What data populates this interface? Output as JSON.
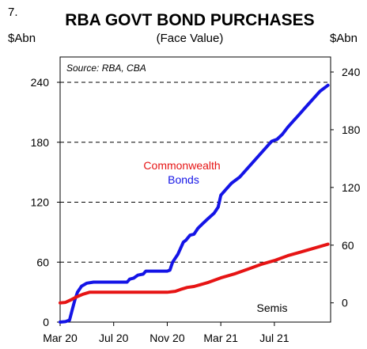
{
  "figure_number": "7.",
  "chart_data": {
    "type": "line",
    "title": "RBA GOVT BOND PURCHASES",
    "subtitle": "(Face Value)",
    "ylabel_left": "$Abn",
    "ylabel_right": "$Abn",
    "source": "Source: RBA, CBA",
    "x_tick_labels": [
      "Mar 20",
      "Jul 20",
      "Nov 20",
      "Mar 21",
      "Jul 21"
    ],
    "x_ticks_month_index": [
      0,
      4,
      8,
      12,
      16
    ],
    "xlim_month_index": [
      0,
      20.2
    ],
    "y_left": {
      "ticks": [
        0,
        60,
        120,
        180,
        240
      ],
      "tick_labels": [
        "0",
        "60",
        "120",
        "180",
        "240"
      ],
      "ylim": [
        0,
        240
      ]
    },
    "y_right": {
      "ticks": [
        0,
        60,
        120,
        180,
        240
      ],
      "tick_labels": [
        "0",
        "60",
        "120",
        "180",
        "240"
      ],
      "ylim": [
        -20,
        240
      ]
    },
    "grid": "horizontal-dashed",
    "series": [
      {
        "name": "Commonwealth Bonds",
        "axis": "left",
        "color": "#1414e6",
        "points": [
          [
            0,
            0
          ],
          [
            0.4,
            0.5
          ],
          [
            0.7,
            2
          ],
          [
            0.9,
            12
          ],
          [
            1.1,
            22
          ],
          [
            1.3,
            30
          ],
          [
            1.6,
            36
          ],
          [
            2.0,
            39
          ],
          [
            2.5,
            40
          ],
          [
            3.0,
            40
          ],
          [
            4.0,
            40
          ],
          [
            4.5,
            40
          ],
          [
            5.0,
            40
          ],
          [
            5.2,
            43
          ],
          [
            5.5,
            44
          ],
          [
            5.8,
            47
          ],
          [
            6.2,
            48
          ],
          [
            6.4,
            51
          ],
          [
            7.0,
            51
          ],
          [
            7.5,
            51
          ],
          [
            8.0,
            51
          ],
          [
            8.2,
            52
          ],
          [
            8.4,
            60
          ],
          [
            8.8,
            68
          ],
          [
            9.2,
            80
          ],
          [
            9.4,
            82
          ],
          [
            9.7,
            87
          ],
          [
            10.0,
            88
          ],
          [
            10.3,
            94
          ],
          [
            10.6,
            98
          ],
          [
            11.0,
            103
          ],
          [
            11.5,
            109
          ],
          [
            11.8,
            115
          ],
          [
            12.0,
            127
          ],
          [
            12.4,
            133
          ],
          [
            12.8,
            139
          ],
          [
            13.4,
            145
          ],
          [
            13.8,
            151
          ],
          [
            14.2,
            157
          ],
          [
            14.6,
            163
          ],
          [
            15.0,
            169
          ],
          [
            15.4,
            175
          ],
          [
            15.8,
            181
          ],
          [
            16.2,
            183
          ],
          [
            16.6,
            188
          ],
          [
            17.0,
            195
          ],
          [
            17.4,
            201
          ],
          [
            17.8,
            207
          ],
          [
            18.2,
            213
          ],
          [
            18.6,
            219
          ],
          [
            19.0,
            225
          ],
          [
            19.4,
            231
          ],
          [
            20.0,
            237
          ]
        ]
      },
      {
        "name": "Semis",
        "axis": "right",
        "color": "#e61414",
        "points": [
          [
            0,
            0
          ],
          [
            0.4,
            0.5
          ],
          [
            0.8,
            3
          ],
          [
            1.2,
            6
          ],
          [
            1.7,
            9
          ],
          [
            2.2,
            11
          ],
          [
            3.0,
            11
          ],
          [
            4.0,
            11
          ],
          [
            5.0,
            11
          ],
          [
            6.0,
            11
          ],
          [
            7.0,
            11
          ],
          [
            8.0,
            11
          ],
          [
            8.6,
            12
          ],
          [
            9.0,
            14
          ],
          [
            9.5,
            16
          ],
          [
            10.0,
            17
          ],
          [
            11.0,
            21
          ],
          [
            12.0,
            26
          ],
          [
            13.0,
            30
          ],
          [
            14.0,
            35
          ],
          [
            15.0,
            40
          ],
          [
            16.0,
            44
          ],
          [
            17.0,
            49
          ],
          [
            18.0,
            53
          ],
          [
            19.0,
            57
          ],
          [
            20.0,
            61
          ]
        ]
      }
    ],
    "annotations": [
      {
        "text_lines": [
          "Commonwealth",
          "Bonds"
        ],
        "color": "#1414e6"
      },
      {
        "text_lines": [
          "Semis"
        ],
        "color": "#e61414"
      }
    ]
  }
}
